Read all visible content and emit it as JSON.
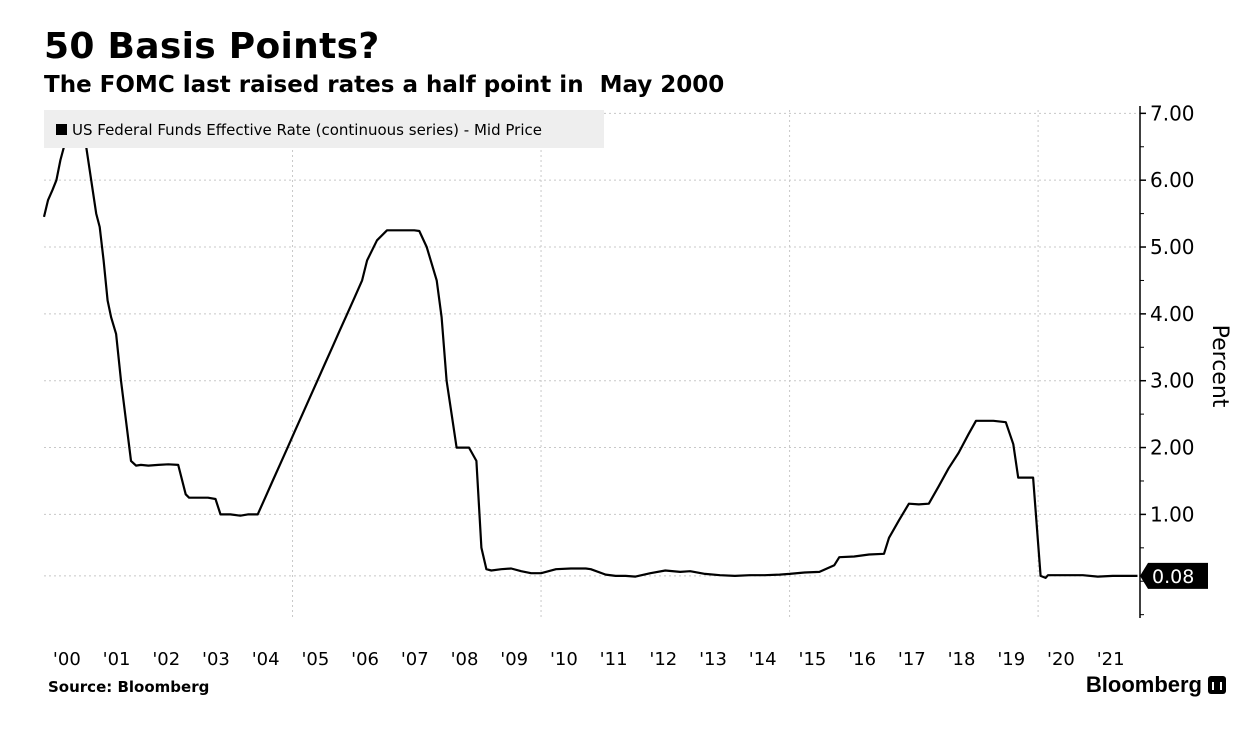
{
  "header": {
    "title": "50 Basis Points?",
    "subtitle": "The FOMC last raised rates a half point in  May 2000"
  },
  "footer": {
    "source": "Source: Bloomberg",
    "brand": "Bloomberg"
  },
  "chart_data": {
    "type": "line",
    "title": "50 Basis Points?",
    "subtitle": "The FOMC last raised rates a half point in  May 2000",
    "ylabel": "Percent",
    "xlabel": "",
    "ylim": [
      -0.55,
      7.05
    ],
    "xlim": [
      2000.0,
      2022.05
    ],
    "grid": true,
    "y_axis_position": "right",
    "yticks": [
      1.0,
      2.0,
      3.0,
      4.0,
      5.0,
      6.0,
      7.0
    ],
    "ytick_labels": [
      "1.00",
      "2.00",
      "3.00",
      "4.00",
      "5.00",
      "6.00",
      "7.00"
    ],
    "xticks": [
      2000,
      2001,
      2002,
      2003,
      2004,
      2005,
      2006,
      2007,
      2008,
      2009,
      2010,
      2011,
      2012,
      2013,
      2014,
      2015,
      2016,
      2017,
      2018,
      2019,
      2020,
      2021
    ],
    "xtick_labels": [
      "'00",
      "'01",
      "'02",
      "'03",
      "'04",
      "'05",
      "'06",
      "'07",
      "'08",
      "'09",
      "'10",
      "'11",
      "'12",
      "'13",
      "'14",
      "'15",
      "'16",
      "'17",
      "'18",
      "'19",
      "'20",
      "'21"
    ],
    "legend": {
      "position": "top-left",
      "entries": [
        "US Federal Funds Effective Rate (continuous series) - Mid Price"
      ]
    },
    "last_value_label": "0.08",
    "colors": {
      "line": "#000000",
      "grid": "#c8c8c8",
      "legend_bg": "#eeeeee",
      "label_bg": "#000000"
    },
    "series": [
      {
        "name": "US Federal Funds Effective Rate (continuous series) - Mid Price",
        "x": [
          2000.0,
          2000.08,
          2000.17,
          2000.25,
          2000.33,
          2000.42,
          2000.5,
          2000.6,
          2000.75,
          2000.85,
          2000.95,
          2001.05,
          2001.12,
          2001.2,
          2001.28,
          2001.35,
          2001.45,
          2001.55,
          2001.65,
          2001.75,
          2001.85,
          2001.95,
          2002.1,
          2002.3,
          2002.5,
          2002.7,
          2002.85,
          2002.92,
          2003.1,
          2003.3,
          2003.45,
          2003.55,
          2003.75,
          2003.95,
          2004.1,
          2004.3,
          2004.45,
          2004.6,
          2004.75,
          2004.9,
          2005.05,
          2005.2,
          2005.35,
          2005.5,
          2005.65,
          2005.8,
          2005.95,
          2006.1,
          2006.25,
          2006.4,
          2006.5,
          2006.7,
          2006.9,
          2007.1,
          2007.3,
          2007.45,
          2007.55,
          2007.7,
          2007.8,
          2007.9,
          2008.0,
          2008.1,
          2008.2,
          2008.3,
          2008.4,
          2008.55,
          2008.7,
          2008.8,
          2008.9,
          2009.0,
          2009.2,
          2009.4,
          2009.6,
          2009.8,
          2010.0,
          2010.3,
          2010.6,
          2010.9,
          2011.0,
          2011.3,
          2011.5,
          2011.7,
          2011.9,
          2012.2,
          2012.5,
          2012.8,
          2013.0,
          2013.3,
          2013.6,
          2013.9,
          2014.2,
          2014.5,
          2014.8,
          2015.0,
          2015.3,
          2015.6,
          2015.9,
          2016.0,
          2016.3,
          2016.6,
          2016.9,
          2017.0,
          2017.2,
          2017.4,
          2017.6,
          2017.8,
          2018.0,
          2018.2,
          2018.4,
          2018.6,
          2018.75,
          2018.9,
          2019.1,
          2019.35,
          2019.5,
          2019.6,
          2019.75,
          2019.9,
          2020.05,
          2020.15,
          2020.2,
          2020.35,
          2020.6,
          2020.9,
          2021.2,
          2021.5,
          2021.8,
          2022.0
        ],
        "values": [
          5.45,
          5.7,
          5.85,
          6.0,
          6.3,
          6.55,
          6.54,
          6.52,
          6.52,
          6.5,
          6.0,
          5.5,
          5.3,
          4.8,
          4.2,
          3.95,
          3.7,
          3.0,
          2.4,
          1.8,
          1.73,
          1.74,
          1.73,
          1.74,
          1.75,
          1.74,
          1.3,
          1.25,
          1.25,
          1.25,
          1.23,
          1.0,
          1.0,
          0.98,
          1.0,
          1.0,
          1.25,
          1.5,
          1.75,
          2.0,
          2.25,
          2.5,
          2.75,
          3.0,
          3.25,
          3.5,
          3.75,
          4.0,
          4.25,
          4.5,
          4.8,
          5.1,
          5.25,
          5.25,
          5.25,
          5.25,
          5.24,
          5.0,
          4.75,
          4.5,
          3.95,
          3.0,
          2.5,
          2.0,
          2.0,
          2.0,
          1.8,
          0.5,
          0.18,
          0.16,
          0.18,
          0.19,
          0.15,
          0.12,
          0.12,
          0.18,
          0.19,
          0.19,
          0.18,
          0.1,
          0.08,
          0.08,
          0.07,
          0.12,
          0.16,
          0.14,
          0.15,
          0.11,
          0.09,
          0.08,
          0.09,
          0.09,
          0.1,
          0.11,
          0.13,
          0.14,
          0.24,
          0.36,
          0.37,
          0.4,
          0.41,
          0.65,
          0.91,
          1.16,
          1.15,
          1.16,
          1.42,
          1.69,
          1.92,
          2.2,
          2.4,
          2.4,
          2.4,
          2.38,
          2.05,
          1.55,
          1.55,
          1.55,
          0.08,
          0.05,
          0.09,
          0.09,
          0.09,
          0.09,
          0.07,
          0.08,
          0.08,
          0.08
        ]
      }
    ]
  }
}
